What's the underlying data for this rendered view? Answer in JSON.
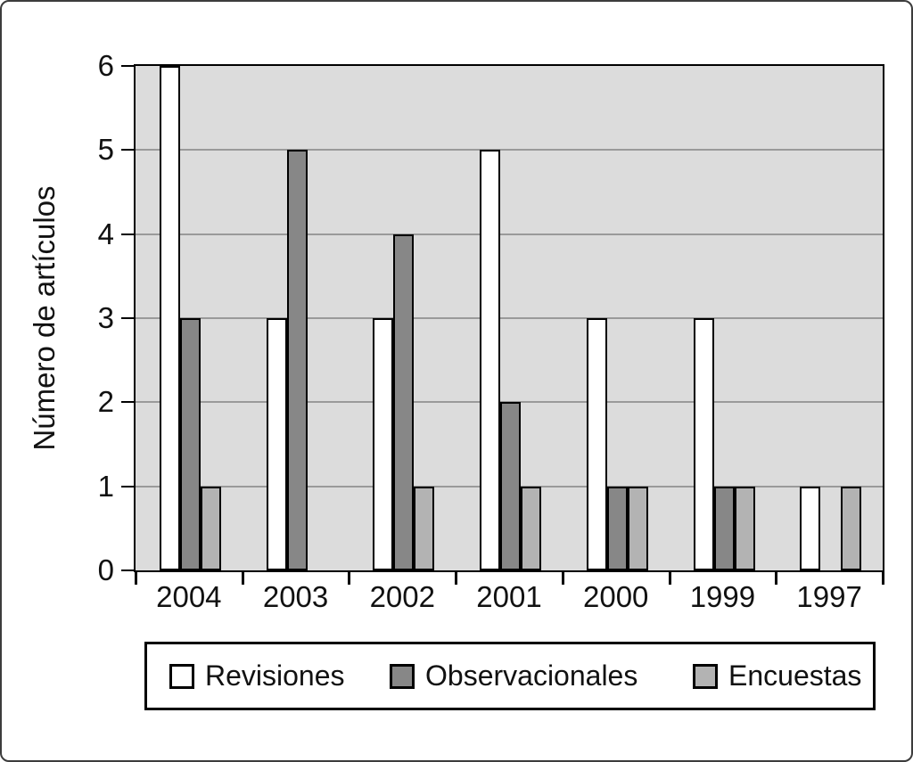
{
  "chart_data": {
    "type": "bar",
    "title": "",
    "xlabel": "",
    "ylabel": "Número de artículos",
    "categories": [
      "2004",
      "2003",
      "2002",
      "2001",
      "2000",
      "1999",
      "1997"
    ],
    "series": [
      {
        "name": "Revisiones",
        "color": "#ffffff",
        "values": [
          6,
          3,
          3,
          5,
          3,
          3,
          1
        ]
      },
      {
        "name": "Observacionales",
        "color": "#878787",
        "values": [
          3,
          5,
          4,
          2,
          1,
          1,
          0
        ]
      },
      {
        "name": "Encuestas",
        "color": "#b3b3b3",
        "values": [
          1,
          0,
          1,
          1,
          1,
          1,
          1
        ]
      }
    ],
    "ylim": [
      0,
      6
    ],
    "yticks": [
      0,
      1,
      2,
      3,
      4,
      5,
      6
    ],
    "grid": true,
    "legend_position": "bottom"
  },
  "colors": {
    "plot_background": "#dcdcdc",
    "gridline": "#9a9a9a",
    "axis": "#000000",
    "frame_border": "#3c3c3c",
    "text": "#111111"
  }
}
